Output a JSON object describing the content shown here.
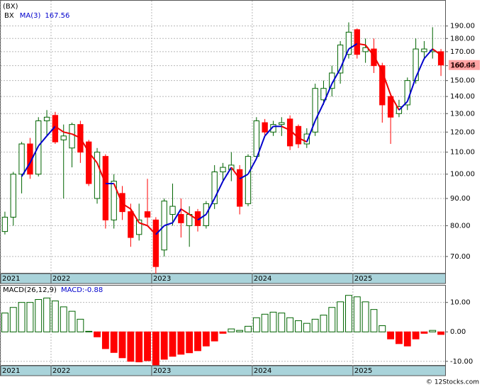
{
  "title": "(BX)",
  "watermark": "© 12Stocks.com",
  "chart_data": [
    {
      "type": "candlestick",
      "name": "BX",
      "log_scale": true,
      "grid": true,
      "up_color": "#006400",
      "down_color": "#ff0000",
      "open": [
        78,
        83,
        100,
        114,
        100,
        126,
        129,
        116,
        112,
        124,
        115,
        90,
        108,
        82,
        92,
        85,
        77,
        85,
        82,
        72,
        84,
        84,
        80,
        85,
        80,
        88,
        101,
        102,
        102,
        88,
        108,
        125,
        120,
        124,
        127,
        123,
        114,
        120,
        138,
        145,
        155,
        168,
        187,
        170,
        172,
        160,
        140,
        130,
        135,
        150,
        170,
        170,
        170
      ],
      "high": [
        85,
        101,
        115,
        117,
        128,
        132,
        131,
        124,
        125,
        126,
        116,
        112,
        109,
        100,
        95,
        88,
        88,
        98,
        83,
        90,
        96,
        90,
        87,
        86,
        89,
        104,
        105,
        110,
        104,
        109,
        128,
        127,
        126,
        128,
        129,
        124,
        122,
        148,
        150,
        160,
        178,
        193,
        188,
        180,
        180,
        162,
        142,
        138,
        152,
        180,
        178,
        189,
        172
      ],
      "low": [
        77,
        80,
        92,
        98,
        99,
        118,
        114,
        90,
        103,
        105,
        95,
        88,
        79,
        79,
        82,
        73,
        75,
        80,
        65,
        70,
        80,
        76,
        73,
        78,
        79,
        86,
        97,
        97,
        84,
        87,
        107,
        118,
        118,
        118,
        111,
        112,
        112,
        118,
        135,
        140,
        148,
        165,
        165,
        162,
        155,
        125,
        114,
        128,
        132,
        148,
        164,
        165,
        153
      ],
      "close": [
        83,
        100,
        114,
        100,
        126,
        128,
        115,
        118,
        124,
        110,
        96,
        110,
        82,
        97,
        85,
        76,
        82,
        83,
        67,
        89,
        87,
        81,
        84,
        80,
        88,
        101,
        103,
        104,
        87,
        108,
        126,
        120,
        124,
        125,
        113,
        114,
        119,
        145,
        145,
        155,
        175,
        185,
        168,
        173,
        160,
        135,
        128,
        134,
        150,
        172,
        172,
        171,
        160.44
      ],
      "ma": {
        "name": "MA(3)",
        "up_color": "#0000cc",
        "down_color": "#ee0000",
        "values": [
          null,
          null,
          99,
          105,
          113,
          118,
          123,
          120,
          119,
          117,
          110,
          105,
          96,
          96,
          88,
          86,
          81,
          80,
          77,
          80,
          81,
          86,
          84,
          82,
          84,
          90,
          97,
          103,
          98,
          100,
          107,
          118,
          123,
          123,
          121,
          117,
          115,
          126,
          136,
          148,
          158,
          172,
          176,
          175,
          167,
          156,
          141,
          132,
          137,
          152,
          165,
          172,
          167.56
        ]
      },
      "xlim": [
        -0.5,
        52.5
      ],
      "xticks": [
        {
          "value": -0.5,
          "label": "2021"
        },
        {
          "value": 5.5,
          "label": "2022"
        },
        {
          "value": 17.5,
          "label": "2023"
        },
        {
          "value": 29.5,
          "label": "2024"
        },
        {
          "value": 41.5,
          "label": "2025"
        }
      ],
      "ylim": [
        65,
        212
      ],
      "yticks": [
        {
          "value": 70,
          "label": "70.00"
        },
        {
          "value": 80,
          "label": "80.00"
        },
        {
          "value": 90,
          "label": "90.00"
        },
        {
          "value": 100,
          "label": "100.00"
        },
        {
          "value": 110,
          "label": "110.00"
        },
        {
          "value": 120,
          "label": "120.00"
        },
        {
          "value": 130,
          "label": "130.00"
        },
        {
          "value": 140,
          "label": "140.00"
        },
        {
          "value": 150,
          "label": "150.00"
        },
        {
          "value": 160,
          "label": "160.00"
        },
        {
          "value": 170,
          "label": "170.00"
        },
        {
          "value": 180,
          "label": "180.00"
        },
        {
          "value": 190,
          "label": "190.00"
        }
      ]
    },
    {
      "type": "bar",
      "name": "MACD(26,12,9)",
      "value_name": "MACD:",
      "grid": true,
      "up_color": "#006400",
      "down_color": "#ff0000",
      "values": [
        6.4,
        8.3,
        10,
        10,
        11,
        11.5,
        10.5,
        8.5,
        7,
        4.3,
        0.2,
        -1.7,
        -5.7,
        -7,
        -8.8,
        -10,
        -10.2,
        -9.8,
        -11.2,
        -9.3,
        -8.3,
        -7.6,
        -7.1,
        -6.4,
        -4.8,
        -3.1,
        -0.5,
        1,
        0.5,
        1.9,
        4.8,
        6,
        6.7,
        6.4,
        4.8,
        3.8,
        2.9,
        4.3,
        5.7,
        8.3,
        10.2,
        12.4,
        11.9,
        10.2,
        7.6,
        2.1,
        -2.4,
        -4,
        -4.8,
        -2.4,
        -0.5,
        0.5,
        -0.88
      ],
      "xlim": [
        -0.5,
        52.5
      ],
      "xticks": [
        {
          "value": -0.5,
          "label": "2021"
        },
        {
          "value": 5.5,
          "label": "2022"
        },
        {
          "value": 17.5,
          "label": "2023"
        },
        {
          "value": 29.5,
          "label": "2024"
        },
        {
          "value": 41.5,
          "label": "2025"
        }
      ],
      "ylim": [
        -11.5,
        15.7
      ],
      "yticks": [
        {
          "value": 10,
          "label": "10.00"
        },
        {
          "value": 0,
          "label": "0.00"
        },
        {
          "value": -10,
          "label": "-10.00"
        }
      ]
    }
  ]
}
